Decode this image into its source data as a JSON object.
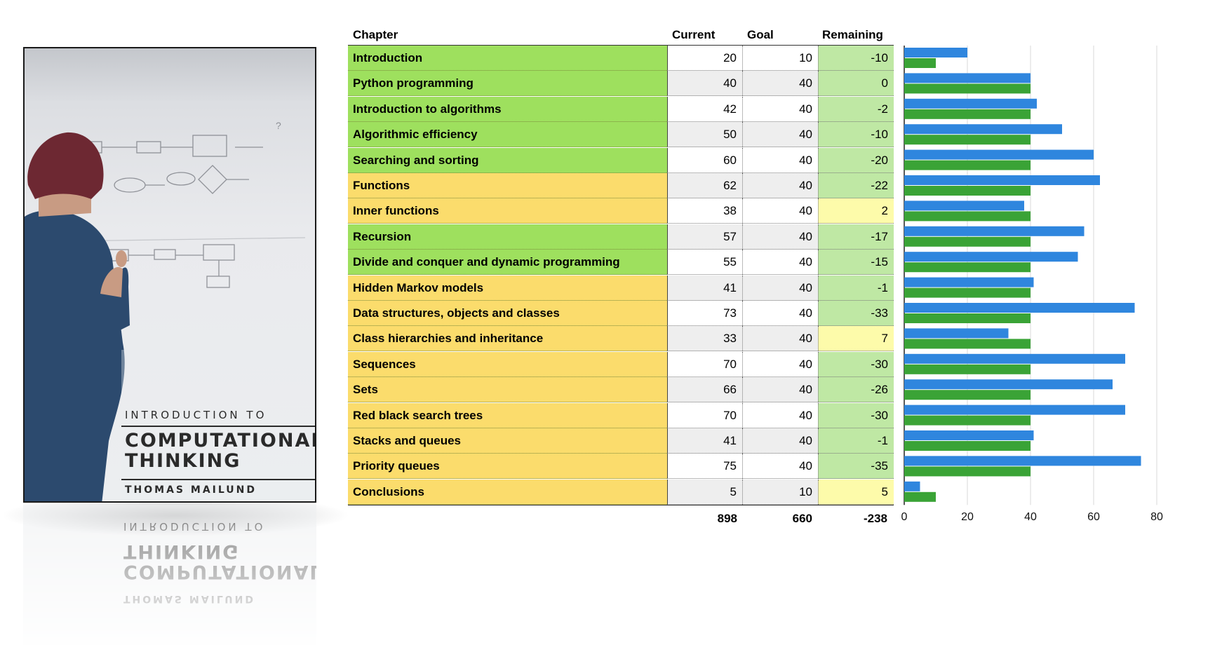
{
  "cover": {
    "pre_title": "INTRODUCTION TO",
    "title_line1": "COMPUTATIONAL",
    "title_line2": "THINKING",
    "author": "THOMAS MAILUND"
  },
  "table": {
    "headers": {
      "chapter": "Chapter",
      "current": "Current",
      "goal": "Goal",
      "remaining": "Remaining"
    },
    "colors": {
      "green_row": "#9ee05e",
      "yellow_row": "#fbdc6c",
      "remaining_negative": "#bfe8a4",
      "remaining_positive": "#fdfbaa",
      "current_stripe": "#eeeeee",
      "goal_stripe": "#eeeeee"
    },
    "rows": [
      {
        "chapter": "Introduction",
        "current": "20",
        "goal": "10",
        "remaining": "-10",
        "status": "green"
      },
      {
        "chapter": "Python programming",
        "current": "40",
        "goal": "40",
        "remaining": "0",
        "status": "green"
      },
      {
        "chapter": "Introduction to algorithms",
        "current": "42",
        "goal": "40",
        "remaining": "-2",
        "status": "green"
      },
      {
        "chapter": "Algorithmic efficiency",
        "current": "50",
        "goal": "40",
        "remaining": "-10",
        "status": "green"
      },
      {
        "chapter": "Searching and sorting",
        "current": "60",
        "goal": "40",
        "remaining": "-20",
        "status": "green"
      },
      {
        "chapter": "Functions",
        "current": "62",
        "goal": "40",
        "remaining": "-22",
        "status": "yellow"
      },
      {
        "chapter": "Inner functions",
        "current": "38",
        "goal": "40",
        "remaining": "2",
        "status": "yellow"
      },
      {
        "chapter": "Recursion",
        "current": "57",
        "goal": "40",
        "remaining": "-17",
        "status": "green"
      },
      {
        "chapter": "Divide and conquer and dynamic programming",
        "current": "55",
        "goal": "40",
        "remaining": "-15",
        "status": "green"
      },
      {
        "chapter": "Hidden Markov models",
        "current": "41",
        "goal": "40",
        "remaining": "-1",
        "status": "yellow"
      },
      {
        "chapter": "Data structures, objects and classes",
        "current": "73",
        "goal": "40",
        "remaining": "-33",
        "status": "yellow"
      },
      {
        "chapter": "Class hierarchies and inheritance",
        "current": "33",
        "goal": "40",
        "remaining": "7",
        "status": "yellow"
      },
      {
        "chapter": "Sequences",
        "current": "70",
        "goal": "40",
        "remaining": "-30",
        "status": "yellow"
      },
      {
        "chapter": "Sets",
        "current": "66",
        "goal": "40",
        "remaining": "-26",
        "status": "yellow"
      },
      {
        "chapter": "Red black search trees",
        "current": "70",
        "goal": "40",
        "remaining": "-30",
        "status": "yellow"
      },
      {
        "chapter": "Stacks and queues",
        "current": "41",
        "goal": "40",
        "remaining": "-1",
        "status": "yellow"
      },
      {
        "chapter": "Priority queues",
        "current": "75",
        "goal": "40",
        "remaining": "-35",
        "status": "yellow"
      },
      {
        "chapter": "Conclusions",
        "current": "5",
        "goal": "10",
        "remaining": "5",
        "status": "yellow"
      }
    ],
    "totals": {
      "current": "898",
      "goal": "660",
      "remaining": "-238"
    }
  },
  "chart_data": {
    "type": "bar",
    "orientation": "horizontal",
    "categories": [
      "Introduction",
      "Python programming",
      "Introduction to algorithms",
      "Algorithmic efficiency",
      "Searching and sorting",
      "Functions",
      "Inner functions",
      "Recursion",
      "Divide and conquer and dynamic programming",
      "Hidden Markov models",
      "Data structures, objects and classes",
      "Class hierarchies and inheritance",
      "Sequences",
      "Sets",
      "Red black search trees",
      "Stacks and queues",
      "Priority queues",
      "Conclusions"
    ],
    "series": [
      {
        "values": [
          20,
          40,
          42,
          50,
          60,
          62,
          38,
          57,
          55,
          41,
          73,
          33,
          70,
          66,
          70,
          41,
          75,
          5
        ],
        "color": "#2f86de"
      },
      {
        "values": [
          10,
          40,
          40,
          40,
          40,
          40,
          40,
          40,
          40,
          40,
          40,
          40,
          40,
          40,
          40,
          40,
          40,
          10
        ],
        "color": "#3aa336"
      }
    ],
    "xlim": [
      0,
      80
    ],
    "xticks": [
      "0",
      "20",
      "40",
      "60",
      "80"
    ],
    "grid": true,
    "legend": "none"
  }
}
